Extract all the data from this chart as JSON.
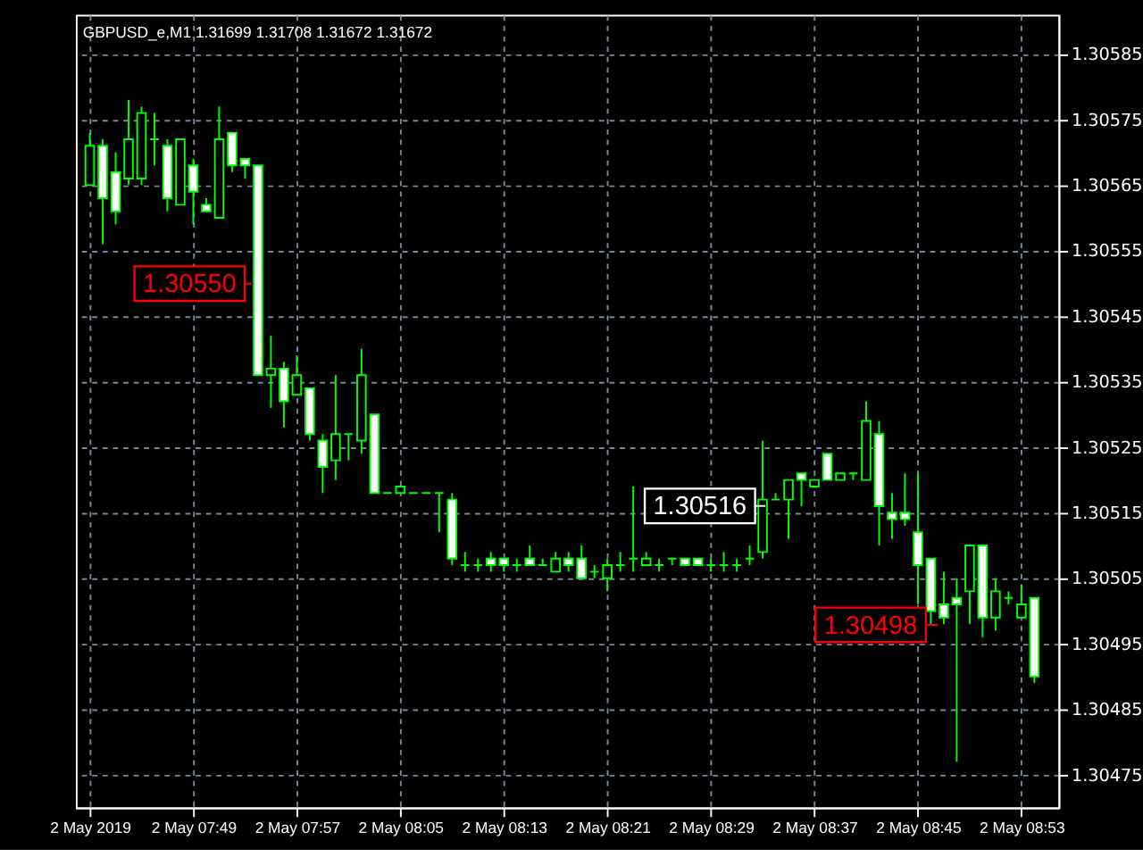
{
  "chart_data": {
    "type": "candlestick",
    "title": "GBPUSD_e,M1  1.31699 1.31708 1.31672 1.31672",
    "categories": [
      "2 May 2019",
      null,
      null,
      null,
      null,
      null,
      null,
      null,
      "2 May 07:49",
      null,
      null,
      null,
      null,
      null,
      null,
      null,
      "2 May 07:57",
      null,
      null,
      null,
      null,
      null,
      null,
      null,
      "2 May 08:05",
      null,
      null,
      null,
      null,
      null,
      null,
      null,
      "2 May 08:13",
      null,
      null,
      null,
      null,
      null,
      null,
      null,
      "2 May 08:21",
      null,
      null,
      null,
      null,
      null,
      null,
      null,
      "2 May 08:29",
      null,
      null,
      null,
      null,
      null,
      null,
      null,
      "2 May 08:37",
      null,
      null,
      null,
      null,
      null,
      null,
      null,
      "2 May 08:45",
      null,
      null,
      null,
      null,
      null,
      null,
      null,
      "2 May 08:53",
      null
    ],
    "ohlc": [
      [
        1.30565,
        1.30573,
        1.30565,
        1.30571
      ],
      [
        1.30571,
        1.30572,
        1.30556,
        1.30563
      ],
      [
        1.30567,
        1.3057,
        1.30559,
        1.30561
      ],
      [
        1.30566,
        1.30578,
        1.30565,
        1.30572
      ],
      [
        1.30566,
        1.30577,
        1.30565,
        1.30576
      ],
      [
        1.30572,
        1.30576,
        1.30568,
        1.30572
      ],
      [
        1.30571,
        1.30572,
        1.30561,
        1.30563
      ],
      [
        1.30562,
        1.30572,
        1.30562,
        1.30572
      ],
      [
        1.30568,
        1.30569,
        1.30559,
        1.30564
      ],
      [
        1.30562,
        1.30563,
        1.30561,
        1.30561
      ],
      [
        1.3056,
        1.30577,
        1.3056,
        1.30572
      ],
      [
        1.30573,
        1.30573,
        1.30567,
        1.30568
      ],
      [
        1.30569,
        1.30569,
        1.30566,
        1.30568
      ],
      [
        1.30568,
        1.30568,
        1.30536,
        1.30536
      ],
      [
        1.30536,
        1.30542,
        1.30531,
        1.30537
      ],
      [
        1.30537,
        1.30538,
        1.30528,
        1.30532
      ],
      [
        1.30533,
        1.30539,
        1.30533,
        1.30536
      ],
      [
        1.30534,
        1.30534,
        1.30526,
        1.30527
      ],
      [
        1.30526,
        1.30527,
        1.30518,
        1.30522
      ],
      [
        1.30523,
        1.30536,
        1.3052,
        1.30527
      ],
      [
        1.30527,
        1.30527,
        1.30523,
        1.30527
      ],
      [
        1.30526,
        1.3054,
        1.30524,
        1.30536
      ],
      [
        1.3053,
        1.3053,
        1.30518,
        1.30518
      ],
      [
        1.30518,
        1.30518,
        1.30518,
        1.30518
      ],
      [
        1.30518,
        1.30519,
        1.30518,
        1.30519
      ],
      [
        1.30518,
        1.30518,
        1.30518,
        1.30518
      ],
      [
        1.30518,
        1.30518,
        1.30518,
        1.30518
      ],
      [
        1.30518,
        1.30518,
        1.30512,
        1.30518
      ],
      [
        1.30517,
        1.30518,
        1.30507,
        1.30508
      ],
      [
        1.30507,
        1.30509,
        1.30506,
        1.30507
      ],
      [
        1.30507,
        1.30508,
        1.30506,
        1.30507
      ],
      [
        1.30508,
        1.30509,
        1.30506,
        1.30507
      ],
      [
        1.30508,
        1.30508,
        1.30506,
        1.30507
      ],
      [
        1.30507,
        1.30508,
        1.30506,
        1.30507
      ],
      [
        1.30508,
        1.3051,
        1.30507,
        1.30507
      ],
      [
        1.30507,
        1.30508,
        1.30507,
        1.30507
      ],
      [
        1.30506,
        1.30509,
        1.30506,
        1.30508
      ],
      [
        1.30508,
        1.30509,
        1.30506,
        1.30507
      ],
      [
        1.30508,
        1.3051,
        1.30505,
        1.30505
      ],
      [
        1.30506,
        1.30507,
        1.30505,
        1.30506
      ],
      [
        1.30505,
        1.30508,
        1.30503,
        1.30507
      ],
      [
        1.30507,
        1.30509,
        1.30506,
        1.30507
      ],
      [
        1.30508,
        1.30519,
        1.30506,
        1.30508
      ],
      [
        1.30507,
        1.30509,
        1.30507,
        1.30508
      ],
      [
        1.30507,
        1.30508,
        1.30506,
        1.30507
      ],
      [
        1.30508,
        1.30508,
        1.30507,
        1.30508
      ],
      [
        1.30508,
        1.30508,
        1.30507,
        1.30507
      ],
      [
        1.30508,
        1.30508,
        1.30507,
        1.30507
      ],
      [
        1.30507,
        1.30508,
        1.30506,
        1.30507
      ],
      [
        1.30507,
        1.30509,
        1.30506,
        1.30507
      ],
      [
        1.30507,
        1.30508,
        1.30506,
        1.30507
      ],
      [
        1.30508,
        1.3051,
        1.30507,
        1.30508
      ],
      [
        1.30509,
        1.30526,
        1.30508,
        1.30517
      ],
      [
        1.30517,
        1.30518,
        1.30517,
        1.30517
      ],
      [
        1.30517,
        1.3052,
        1.30511,
        1.3052
      ],
      [
        1.30521,
        1.30521,
        1.30516,
        1.3052
      ],
      [
        1.30519,
        1.3052,
        1.30519,
        1.3052
      ],
      [
        1.30524,
        1.30524,
        1.3052,
        1.3052
      ],
      [
        1.3052,
        1.30521,
        1.3052,
        1.30521
      ],
      [
        1.30521,
        1.30521,
        1.3052,
        1.30521
      ],
      [
        1.3052,
        1.30532,
        1.3052,
        1.30529
      ],
      [
        1.30527,
        1.30529,
        1.3051,
        1.30516
      ],
      [
        1.30515,
        1.30518,
        1.30511,
        1.30514
      ],
      [
        1.30515,
        1.30521,
        1.30513,
        1.30514
      ],
      [
        1.30512,
        1.30521,
        1.30501,
        1.30507
      ],
      [
        1.30508,
        1.30508,
        1.30498,
        1.305
      ],
      [
        1.30501,
        1.30506,
        1.30498,
        1.30499
      ],
      [
        1.30502,
        1.30505,
        1.30477,
        1.30501
      ],
      [
        1.30503,
        1.3051,
        1.30498,
        1.3051
      ],
      [
        1.3051,
        1.3051,
        1.30496,
        1.30499
      ],
      [
        1.30499,
        1.30505,
        1.30497,
        1.30503
      ],
      [
        1.30502,
        1.30503,
        1.30501,
        1.30502
      ],
      [
        1.30499,
        1.30504,
        1.30499,
        1.30501
      ],
      [
        1.30502,
        1.30502,
        1.30489,
        1.3049
      ]
    ],
    "color": "#00ff00",
    "ylim": [
      1.3047,
      1.30591
    ],
    "yticks": [
      1.30475,
      1.30485,
      1.30495,
      1.30505,
      1.30515,
      1.30525,
      1.30535,
      1.30545,
      1.30555,
      1.30565,
      1.30575,
      1.30585
    ],
    "annotations": [
      "1.30550",
      "1.30516",
      "1.30498"
    ],
    "grid": true
  }
}
